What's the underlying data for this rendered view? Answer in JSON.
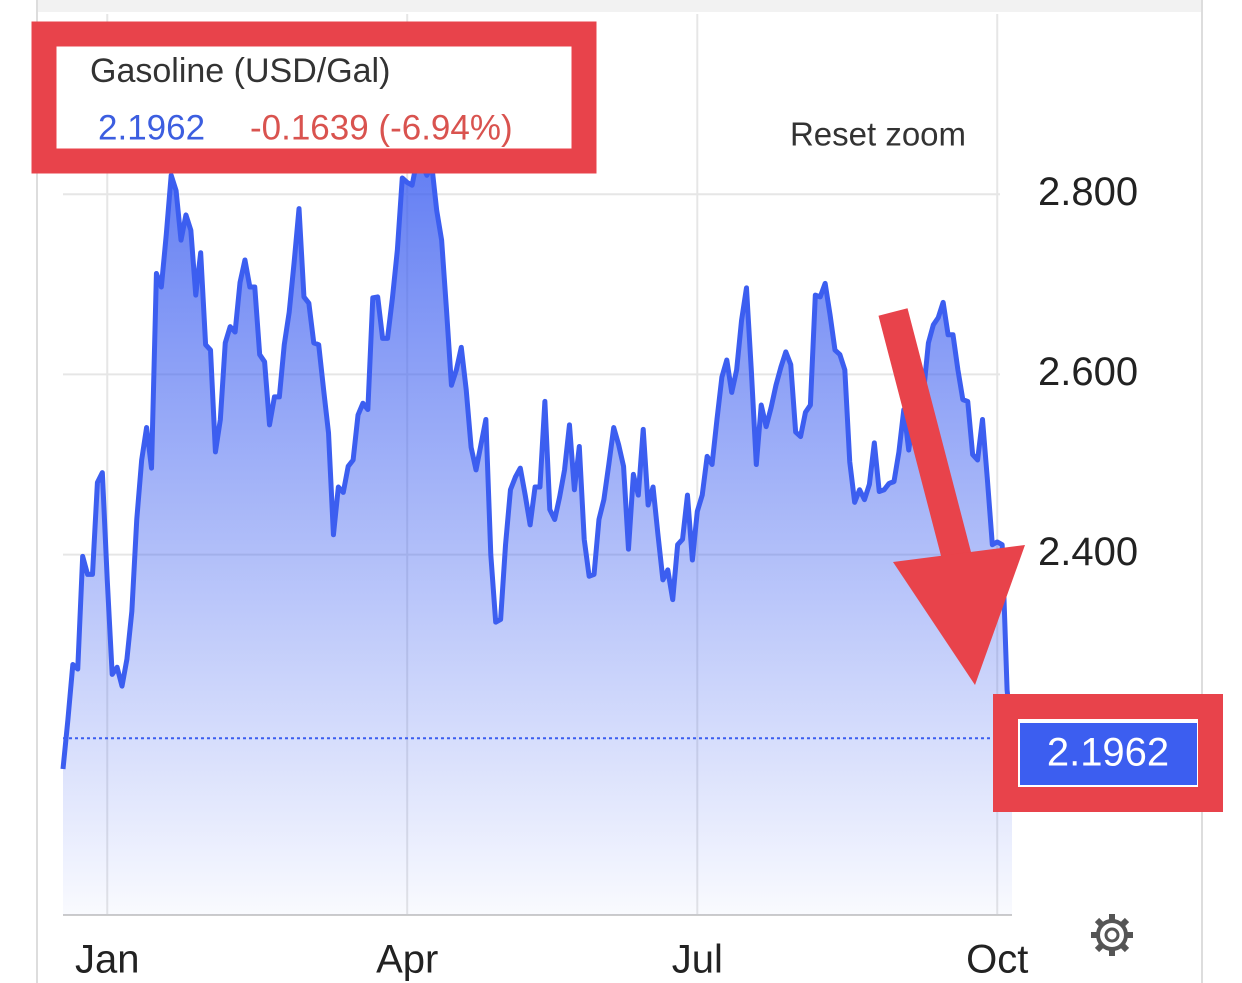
{
  "chart_data": {
    "type": "area",
    "title": "Gasoline (USD/Gal)",
    "change": "-0.1639 (-6.94%)",
    "reset_button": "Reset zoom",
    "color": "#3c5ef0",
    "grid": true,
    "ylim": [
      2.0,
      3.0
    ],
    "yticks": [
      {
        "value": 2.4,
        "label": "2.400"
      },
      {
        "value": 2.6,
        "label": "2.600"
      },
      {
        "value": 2.8,
        "label": "2.800"
      }
    ],
    "categories": [
      null,
      null,
      null,
      null,
      null,
      null,
      null,
      null,
      null,
      "Jan",
      null,
      null,
      null,
      null,
      null,
      null,
      null,
      null,
      null,
      null,
      null,
      null,
      null,
      null,
      null,
      null,
      null,
      null,
      null,
      null,
      null,
      null,
      null,
      null,
      null,
      null,
      null,
      null,
      null,
      null,
      null,
      null,
      null,
      null,
      null,
      null,
      null,
      null,
      null,
      null,
      null,
      null,
      null,
      null,
      null,
      null,
      null,
      null,
      null,
      null,
      null,
      null,
      null,
      null,
      null,
      null,
      null,
      null,
      null,
      null,
      "Apr",
      null,
      null,
      null,
      null,
      null,
      null,
      null,
      null,
      null,
      null,
      null,
      null,
      null,
      null,
      null,
      null,
      null,
      null,
      null,
      null,
      null,
      null,
      null,
      null,
      null,
      null,
      null,
      null,
      null,
      null,
      null,
      null,
      null,
      null,
      null,
      null,
      null,
      null,
      null,
      null,
      null,
      null,
      null,
      null,
      null,
      null,
      null,
      null,
      null,
      null,
      null,
      null,
      null,
      null,
      null,
      null,
      null,
      null,
      "Jul",
      null,
      null,
      null,
      null,
      null,
      null,
      null,
      null,
      null,
      null,
      null,
      null,
      null,
      null,
      null,
      null,
      null,
      null,
      null,
      null,
      null,
      null,
      null,
      null,
      null,
      null,
      null,
      null,
      null,
      null,
      null,
      null,
      null,
      null,
      null,
      null,
      null,
      null,
      null,
      null,
      null,
      null,
      null,
      null,
      null,
      null,
      null,
      null,
      null,
      null,
      null,
      null,
      null,
      null,
      null,
      null,
      null,
      null,
      null,
      null,
      "Oct",
      null,
      null,
      null
    ],
    "values": [
      2.162,
      2.217,
      2.278,
      2.273,
      2.398,
      2.378,
      2.378,
      2.48,
      2.491,
      2.372,
      2.267,
      2.275,
      2.254,
      2.284,
      2.337,
      2.439,
      2.505,
      2.541,
      2.496,
      2.712,
      2.697,
      2.755,
      2.821,
      2.804,
      2.749,
      2.777,
      2.76,
      2.688,
      2.735,
      2.633,
      2.627,
      2.514,
      2.55,
      2.635,
      2.653,
      2.647,
      2.702,
      2.727,
      2.697,
      2.697,
      2.622,
      2.614,
      2.544,
      2.575,
      2.575,
      2.633,
      2.669,
      2.724,
      2.784,
      2.686,
      2.679,
      2.635,
      2.633,
      2.583,
      2.535,
      2.422,
      2.475,
      2.469,
      2.498,
      2.505,
      2.555,
      2.568,
      2.561,
      2.685,
      2.686,
      2.64,
      2.64,
      2.685,
      2.738,
      2.818,
      2.813,
      2.81,
      2.838,
      2.834,
      2.821,
      2.832,
      2.782,
      2.749,
      2.671,
      2.588,
      2.605,
      2.63,
      2.583,
      2.519,
      2.494,
      2.522,
      2.55,
      2.4,
      2.325,
      2.328,
      2.411,
      2.472,
      2.486,
      2.496,
      2.466,
      2.433,
      2.475,
      2.475,
      2.57,
      2.45,
      2.439,
      2.464,
      2.494,
      2.544,
      2.472,
      2.52,
      2.417,
      2.376,
      2.378,
      2.439,
      2.461,
      2.5,
      2.541,
      2.522,
      2.498,
      2.406,
      2.489,
      2.466,
      2.539,
      2.455,
      2.475,
      2.422,
      2.372,
      2.383,
      2.35,
      2.411,
      2.417,
      2.466,
      2.394,
      2.448,
      2.466,
      2.509,
      2.5,
      2.55,
      2.597,
      2.616,
      2.58,
      2.605,
      2.66,
      2.696,
      2.603,
      2.5,
      2.566,
      2.542,
      2.563,
      2.588,
      2.608,
      2.625,
      2.611,
      2.536,
      2.531,
      2.558,
      2.566,
      2.688,
      2.686,
      2.701,
      2.666,
      2.627,
      2.622,
      2.605,
      2.503,
      2.458,
      2.472,
      2.461,
      2.478,
      2.524,
      2.47,
      2.472,
      2.479,
      2.481,
      2.514,
      2.561,
      2.516,
      2.557,
      2.546,
      2.58,
      2.635,
      2.655,
      2.663,
      2.68,
      2.644,
      2.644,
      2.605,
      2.572,
      2.57,
      2.511,
      2.505,
      2.55,
      2.483,
      2.411,
      2.414,
      2.411,
      2.25,
      2.1962
    ]
  }
}
